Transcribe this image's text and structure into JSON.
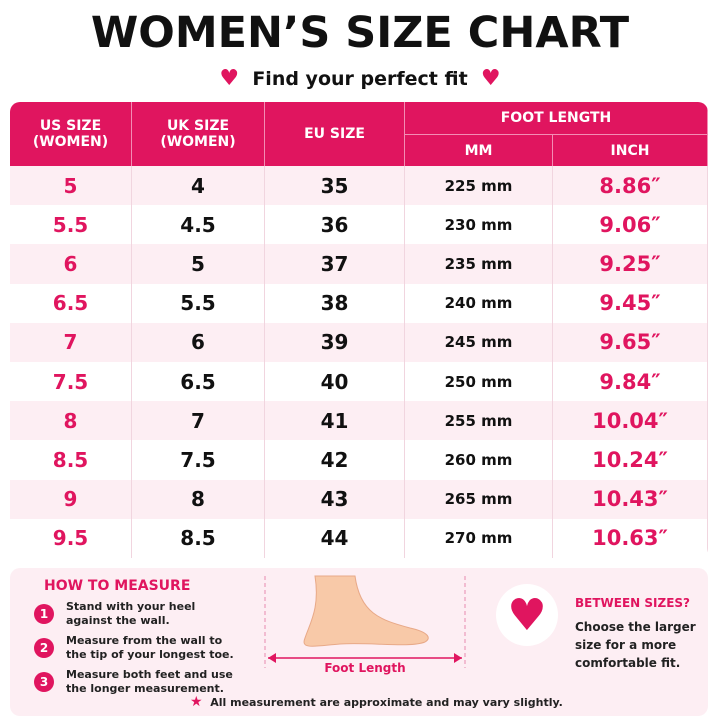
{
  "header": {
    "title": "WOMEN’S SIZE CHART",
    "subtitle": "Find your perfect fit"
  },
  "table": {
    "columns": [
      "US SIZE\n(WOMEN)",
      "UK SIZE\n(WOMEN)",
      "EU SIZE",
      "FOOT LENGTH"
    ],
    "subcolumns": [
      "MM",
      "INCH"
    ],
    "rows": [
      [
        "5",
        "4",
        "35",
        "225 mm",
        "8.86″"
      ],
      [
        "5.5",
        "4.5",
        "36",
        "230 mm",
        "9.06″"
      ],
      [
        "6",
        "5",
        "37",
        "235 mm",
        "9.25″"
      ],
      [
        "6.5",
        "5.5",
        "38",
        "240 mm",
        "9.45″"
      ],
      [
        "7",
        "6",
        "39",
        "245 mm",
        "9.65″"
      ],
      [
        "7.5",
        "6.5",
        "40",
        "250 mm",
        "9.84″"
      ],
      [
        "8",
        "7",
        "41",
        "255 mm",
        "10.04″"
      ],
      [
        "8.5",
        "7.5",
        "42",
        "260 mm",
        "10.24″"
      ],
      [
        "9",
        "8",
        "43",
        "265 mm",
        "10.43″"
      ],
      [
        "9.5",
        "8.5",
        "44",
        "270 mm",
        "10.63″"
      ]
    ]
  },
  "how_to_measure": {
    "title": "HOW TO MEASURE",
    "steps": [
      {
        "number": "1",
        "text": "Stand with your heel\nagainst the wall."
      },
      {
        "number": "2",
        "text": "Measure from the wall to\nthe tip of your longest toe."
      },
      {
        "number": "3",
        "text": "Measure both feet and use\nthe longer measurement."
      }
    ]
  },
  "illustration": {
    "label": "Foot Length"
  },
  "between_sizes": {
    "title": "BETWEEN SIZES?",
    "text": "Choose the larger\nsize for a more\ncomfortable fit."
  },
  "footnote": "All measurement are approximate and may vary slightly."
}
